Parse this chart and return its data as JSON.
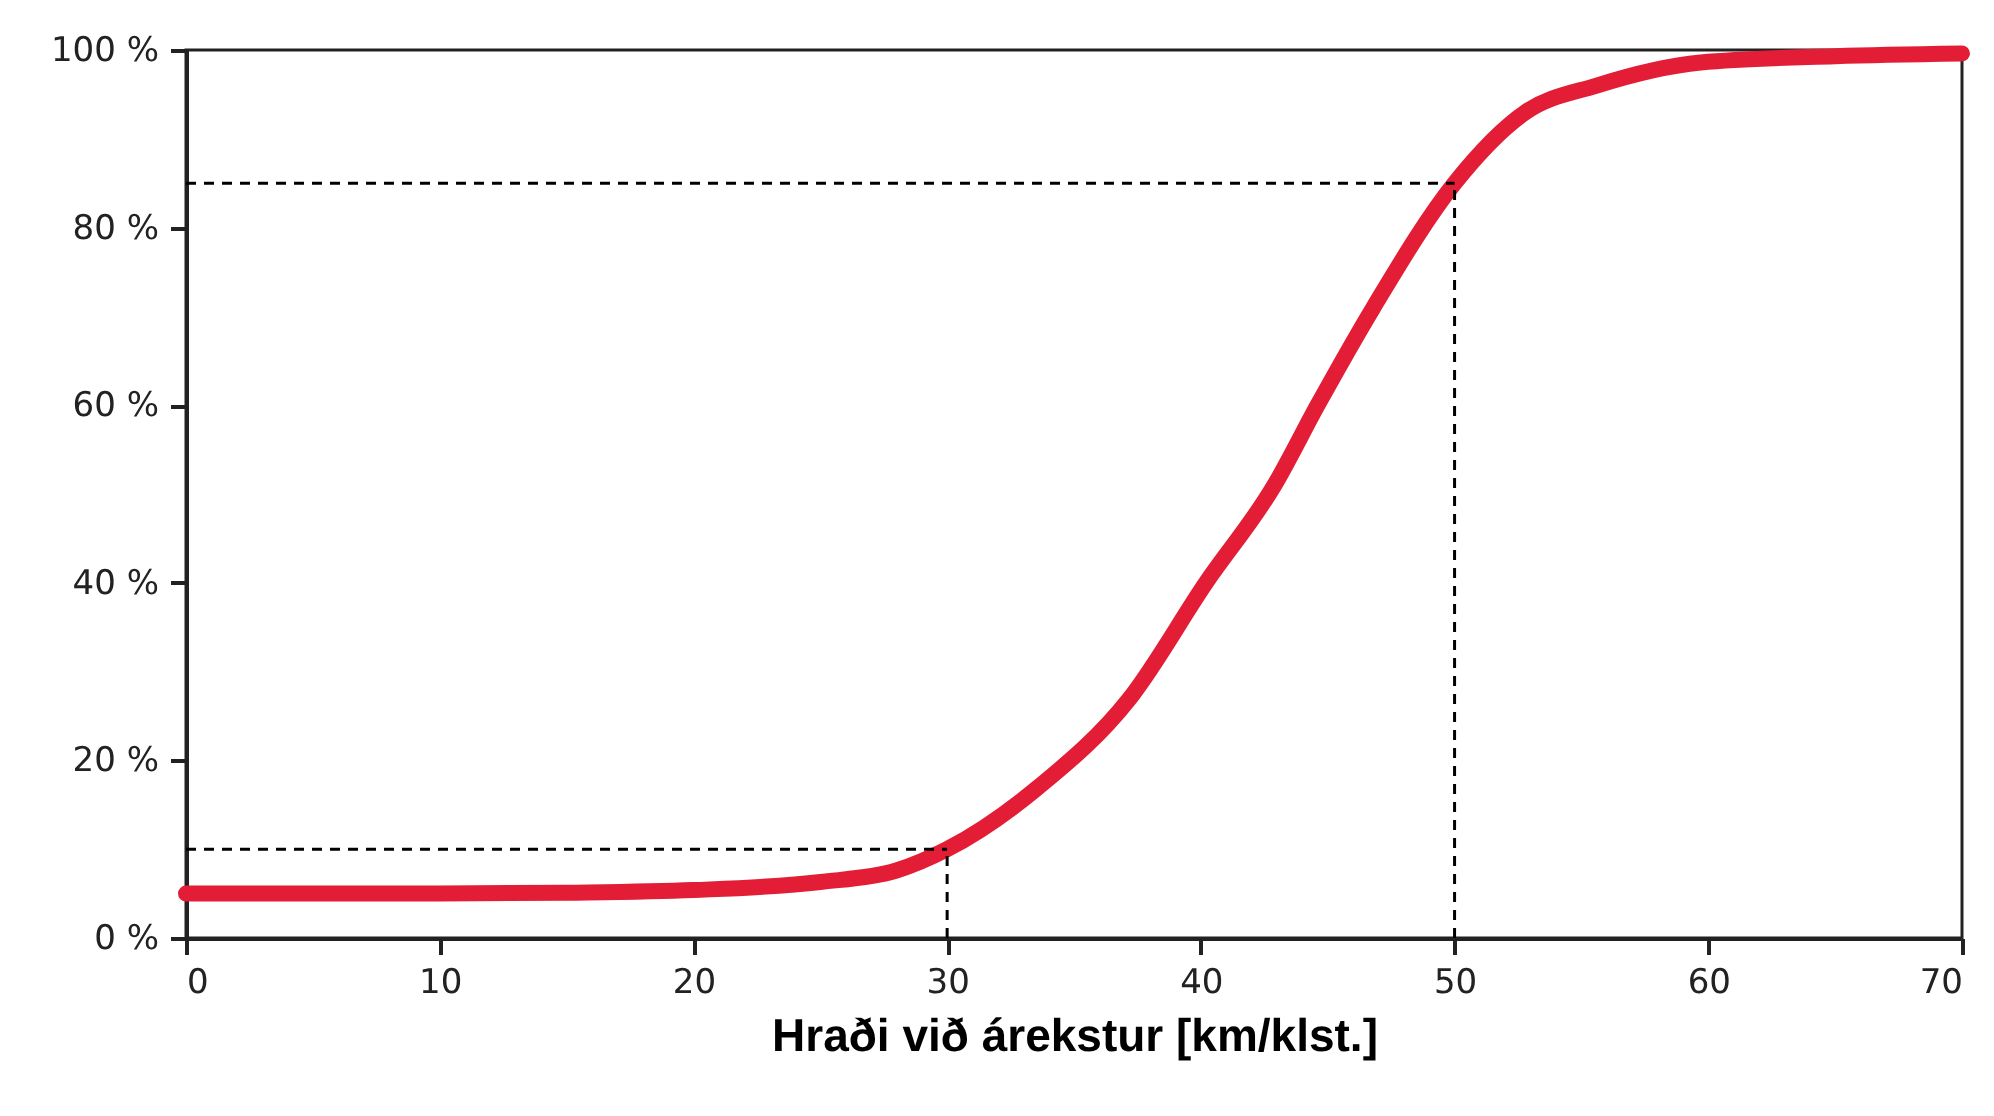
{
  "chart_data": {
    "type": "line",
    "xlabel": "Hraði við árekstur [km/klst.]",
    "x": [
      0,
      5,
      10,
      15,
      20,
      25,
      28,
      30,
      33.6,
      37.2,
      40.2,
      42.9,
      44.6,
      46.8,
      50,
      52.8,
      55.6,
      59.7,
      65,
      70
    ],
    "series": [
      {
        "color": "#e31d35",
        "values": [
          5,
          5,
          5,
          5.1,
          5.4,
          6.3,
          7.6,
          10,
          17,
          27,
          40,
          51,
          60,
          71,
          85,
          93,
          96,
          98.6,
          99.3,
          99.6
        ]
      }
    ],
    "xlim": [
      0,
      70
    ],
    "xticks": [
      0,
      10,
      20,
      30,
      40,
      50,
      60,
      70
    ],
    "ylim": [
      0,
      100
    ],
    "yticks": [
      {
        "value": 0,
        "label": "0 %"
      },
      {
        "value": 20,
        "label": "20 %"
      },
      {
        "value": 40,
        "label": "40 %"
      },
      {
        "value": 60,
        "label": "60 %"
      },
      {
        "value": 80,
        "label": "80 %"
      },
      {
        "value": 100,
        "label": "100 %"
      }
    ],
    "ref_lines": [
      {
        "axis": "x",
        "value": 30,
        "line_style": "dashed",
        "color": "#000000"
      },
      {
        "axis": "y",
        "value": 10,
        "line_style": "dashed",
        "color": "#000000"
      },
      {
        "axis": "x",
        "value": 50,
        "line_style": "dashed",
        "color": "#000000"
      },
      {
        "axis": "y",
        "value": 85,
        "line_style": "dashed",
        "color": "#000000"
      }
    ],
    "line_style": "solid"
  }
}
